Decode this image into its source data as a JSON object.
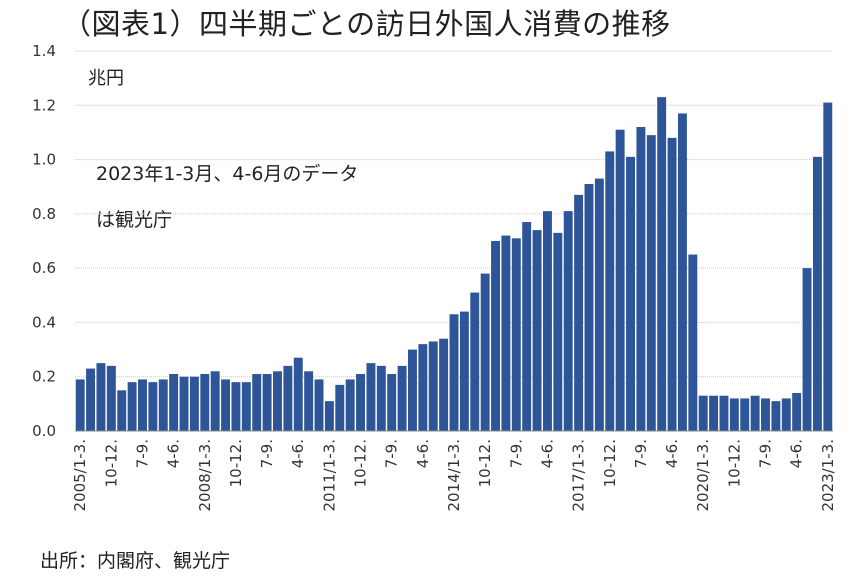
{
  "chart_data": {
    "type": "bar",
    "title": "（図表1）四半期ごとの訪日外国人消費の推移",
    "unit_label": "兆円",
    "annotation": [
      "2023年1-3月、4-6月のデータ",
      "は観光庁"
    ],
    "source": "出所：内閣府、観光庁",
    "ylim": [
      0,
      1.4
    ],
    "yticks": [
      "0.0",
      "0.2",
      "0.4",
      "0.6",
      "0.8",
      "1.0",
      "1.2",
      "1.4"
    ],
    "grid": true,
    "bar_color": "#2e5597",
    "x_tick_labels": [
      {
        "i": 0,
        "label": "2005/1-3."
      },
      {
        "i": 3,
        "label": "10-12."
      },
      {
        "i": 6,
        "label": "7-9."
      },
      {
        "i": 9,
        "label": "4-6."
      },
      {
        "i": 12,
        "label": "2008/1-3."
      },
      {
        "i": 15,
        "label": "10-12."
      },
      {
        "i": 18,
        "label": "7-9."
      },
      {
        "i": 21,
        "label": "4-6."
      },
      {
        "i": 24,
        "label": "2011/1-3."
      },
      {
        "i": 27,
        "label": "10-12."
      },
      {
        "i": 30,
        "label": "7-9."
      },
      {
        "i": 33,
        "label": "4-6."
      },
      {
        "i": 36,
        "label": "2014/1-3."
      },
      {
        "i": 39,
        "label": "10-12."
      },
      {
        "i": 42,
        "label": "7-9."
      },
      {
        "i": 45,
        "label": "4-6."
      },
      {
        "i": 48,
        "label": "2017/1-3."
      },
      {
        "i": 51,
        "label": "10-12."
      },
      {
        "i": 54,
        "label": "7-9."
      },
      {
        "i": 57,
        "label": "4-6."
      },
      {
        "i": 60,
        "label": "2020/1-3."
      },
      {
        "i": 63,
        "label": "10-12."
      },
      {
        "i": 66,
        "label": "7-9."
      },
      {
        "i": 69,
        "label": "4-6."
      },
      {
        "i": 72,
        "label": "2023/1-3."
      }
    ],
    "values": [
      0.19,
      0.23,
      0.25,
      0.24,
      0.15,
      0.18,
      0.19,
      0.18,
      0.19,
      0.21,
      0.2,
      0.2,
      0.21,
      0.22,
      0.19,
      0.18,
      0.18,
      0.21,
      0.21,
      0.22,
      0.24,
      0.27,
      0.22,
      0.19,
      0.11,
      0.17,
      0.19,
      0.21,
      0.25,
      0.24,
      0.21,
      0.24,
      0.3,
      0.32,
      0.33,
      0.34,
      0.43,
      0.44,
      0.51,
      0.58,
      0.7,
      0.72,
      0.71,
      0.77,
      0.74,
      0.81,
      0.73,
      0.81,
      0.87,
      0.91,
      0.93,
      1.03,
      1.11,
      1.01,
      1.12,
      1.09,
      1.23,
      1.08,
      1.17,
      0.65,
      0.13,
      0.13,
      0.13,
      0.12,
      0.12,
      0.13,
      0.12,
      0.11,
      0.12,
      0.14,
      0.6,
      1.01,
      1.21
    ]
  }
}
